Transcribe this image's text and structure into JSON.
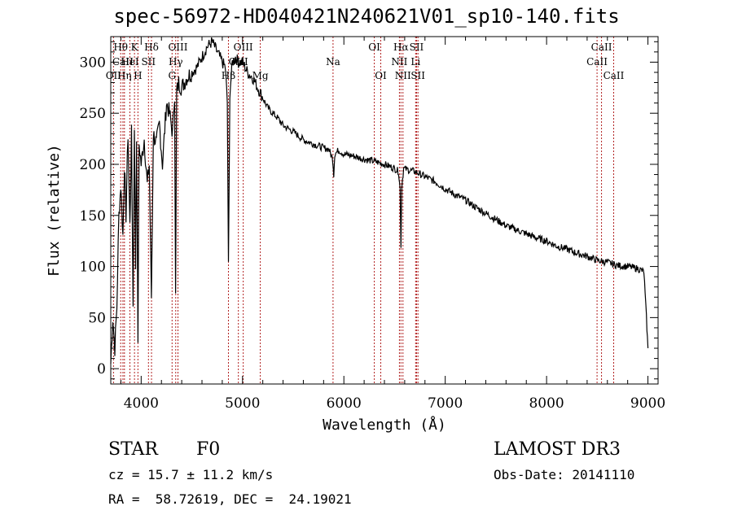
{
  "chart_data": {
    "type": "line",
    "title": "spec-56972-HD040421N240621V01_sp10-140.fits",
    "xlabel": "Wavelength (Å)",
    "ylabel": "Flux (relative)",
    "xlim": [
      3700,
      9100
    ],
    "ylim": [
      -15,
      325
    ],
    "xticks": [
      4000,
      5000,
      6000,
      7000,
      8000,
      9000
    ],
    "yticks": [
      0,
      50,
      100,
      150,
      200,
      250,
      300
    ],
    "grid": false,
    "series": [
      {
        "name": "flux",
        "x": [
          3700,
          3720,
          3740,
          3760,
          3780,
          3800,
          3820,
          3835,
          3850,
          3870,
          3889,
          3905,
          3920,
          3933,
          3945,
          3955,
          3968,
          3980,
          4000,
          4030,
          4060,
          4080,
          4101,
          4120,
          4150,
          4180,
          4210,
          4250,
          4280,
          4310,
          4330,
          4340,
          4350,
          4370,
          4400,
          4450,
          4500,
          4550,
          4600,
          4650,
          4700,
          4750,
          4800,
          4830,
          4850,
          4861,
          4875,
          4900,
          4930,
          4960,
          5000,
          5050,
          5100,
          5150,
          5200,
          5250,
          5300,
          5350,
          5400,
          5450,
          5500,
          5550,
          5600,
          5650,
          5700,
          5750,
          5800,
          5850,
          5890,
          5900,
          5910,
          5950,
          6000,
          6100,
          6200,
          6300,
          6400,
          6500,
          6540,
          6555,
          6563,
          6572,
          6590,
          6620,
          6700,
          6800,
          6900,
          7000,
          7100,
          7200,
          7300,
          7400,
          7500,
          7600,
          7700,
          7800,
          7900,
          8000,
          8100,
          8200,
          8300,
          8400,
          8500,
          8600,
          8700,
          8800,
          8900,
          8960,
          8985,
          9000
        ],
        "values": [
          5,
          50,
          20,
          60,
          150,
          180,
          130,
          200,
          150,
          230,
          140,
          230,
          60,
          240,
          100,
          230,
          30,
          220,
          200,
          225,
          180,
          200,
          70,
          230,
          220,
          240,
          200,
          260,
          250,
          230,
          270,
          70,
          270,
          280,
          275,
          285,
          290,
          295,
          305,
          315,
          320,
          310,
          300,
          295,
          260,
          100,
          270,
          300,
          305,
          300,
          300,
          290,
          285,
          275,
          265,
          255,
          250,
          245,
          238,
          235,
          232,
          228,
          224,
          222,
          220,
          218,
          216,
          215,
          205,
          190,
          210,
          214,
          210,
          208,
          205,
          203,
          200,
          196,
          193,
          175,
          120,
          180,
          196,
          195,
          193,
          188,
          183,
          176,
          170,
          165,
          158,
          152,
          146,
          140,
          136,
          132,
          128,
          125,
          120,
          117,
          113,
          110,
          106,
          104,
          101,
          100,
          98,
          95,
          50,
          20
        ]
      }
    ],
    "lines": [
      {
        "label": "Hθ",
        "x": 3798,
        "row": 0
      },
      {
        "label": "CaII",
        "x": 3820,
        "row": 1
      },
      {
        "label": "OII",
        "x": 3727,
        "row": 2
      },
      {
        "label": "Hη",
        "x": 3835,
        "row": 2
      },
      {
        "label": "K",
        "x": 3934,
        "row": 0
      },
      {
        "label": "HeI",
        "x": 3889,
        "row": 1
      },
      {
        "label": "H",
        "x": 3968,
        "row": 2
      },
      {
        "label": "Hδ",
        "x": 4102,
        "row": 0
      },
      {
        "label": "SII",
        "x": 4072,
        "row": 1
      },
      {
        "label": "OIII",
        "x": 4363,
        "row": 0
      },
      {
        "label": "Hγ",
        "x": 4341,
        "row": 1
      },
      {
        "label": "G",
        "x": 4305,
        "row": 2
      },
      {
        "label": "OIII",
        "x": 5007,
        "row": 0
      },
      {
        "label": "OIII",
        "x": 4959,
        "row": 1
      },
      {
        "label": "Hβ",
        "x": 4861,
        "row": 2
      },
      {
        "label": "Mg",
        "x": 5175,
        "row": 2
      },
      {
        "label": "Na",
        "x": 5893,
        "row": 1
      },
      {
        "label": "OI",
        "x": 6300,
        "row": 0
      },
      {
        "label": "OI",
        "x": 6364,
        "row": 2
      },
      {
        "label": "Hα",
        "x": 6563,
        "row": 0
      },
      {
        "label": "SII",
        "x": 6717,
        "row": 0
      },
      {
        "label": "NII",
        "x": 6548,
        "row": 1
      },
      {
        "label": "Li",
        "x": 6708,
        "row": 1
      },
      {
        "label": "NII",
        "x": 6583,
        "row": 2
      },
      {
        "label": "SII",
        "x": 6731,
        "row": 2
      },
      {
        "label": "CaII",
        "x": 8542,
        "row": 0
      },
      {
        "label": "CaII",
        "x": 8498,
        "row": 1
      },
      {
        "label": "CaII",
        "x": 8662,
        "row": 2
      }
    ]
  },
  "info": {
    "object_class": "STAR",
    "subclass": "F0",
    "survey": "LAMOST DR3",
    "cz": "cz = 15.7 ± 11.2 km/s",
    "obs_date": "Obs-Date: 20141110",
    "coords": "RA =  58.72619, DEC =  24.19021"
  },
  "colors": {
    "spectrum": "#000000",
    "line_marker": "#b22222",
    "axis": "#000000"
  }
}
